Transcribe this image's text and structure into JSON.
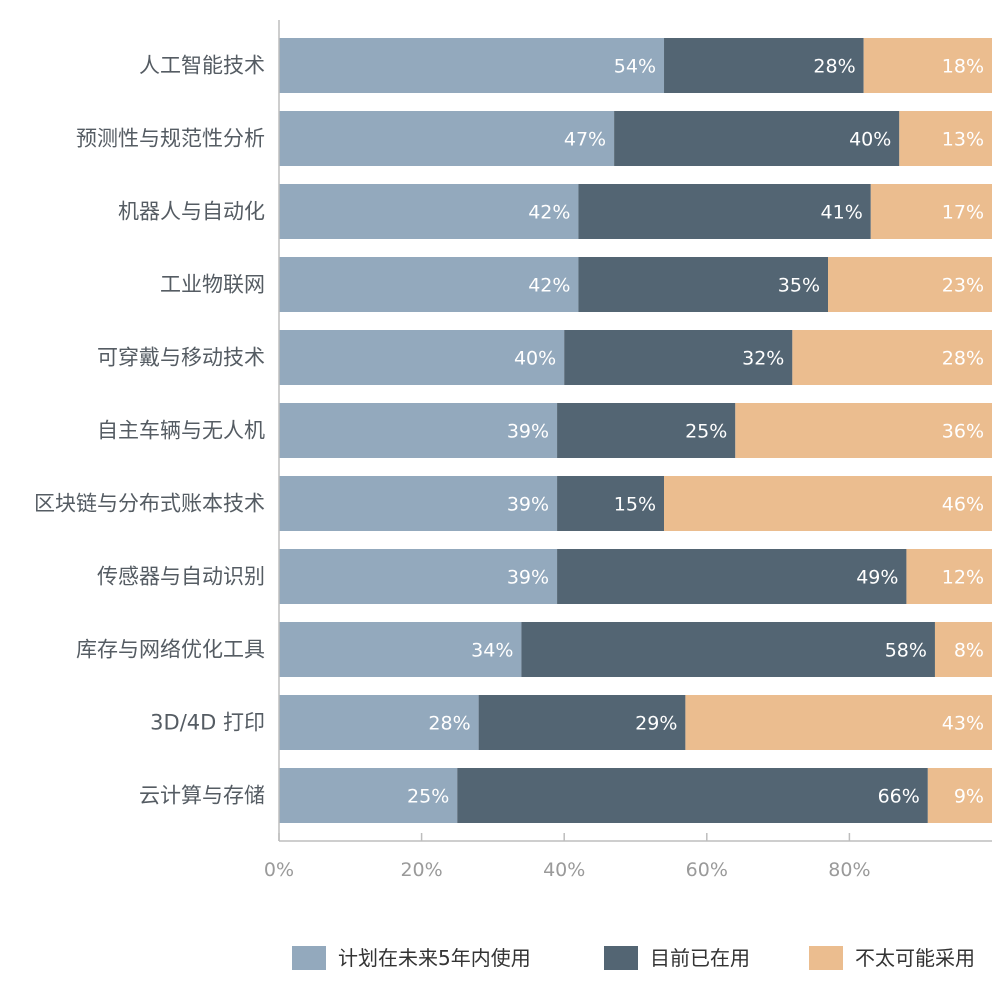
{
  "chart_data": {
    "type": "bar",
    "orientation": "horizontal",
    "stacked": true,
    "categories": [
      "人工智能技术",
      "预测性与规范性分析",
      "机器人与自动化",
      "工业物联网",
      "可穿戴与移动技术",
      "自主车辆与无人机",
      "区块链与分布式账本技术",
      "传感器与自动识别",
      "库存与网络优化工具",
      "3D/4D 打印",
      "云计算与存储"
    ],
    "series": [
      {
        "name": "计划在未来5年内使用",
        "color": "#93a9bd",
        "values": [
          54,
          47,
          42,
          42,
          40,
          39,
          39,
          39,
          34,
          28,
          25
        ]
      },
      {
        "name": "目前已在用",
        "color": "#536573",
        "values": [
          28,
          40,
          41,
          35,
          32,
          25,
          15,
          49,
          58,
          29,
          66
        ]
      },
      {
        "name": "不太可能采用",
        "color": "#ebbd8f",
        "values": [
          18,
          13,
          17,
          23,
          28,
          36,
          46,
          12,
          8,
          43,
          9
        ]
      }
    ],
    "xlim": [
      0,
      100
    ],
    "xticks": [
      "0%",
      "20%",
      "40%",
      "60%",
      "80%"
    ],
    "value_suffix": "%",
    "legend": "bottom",
    "grid": false,
    "title": "",
    "xlabel": "",
    "ylabel": ""
  }
}
